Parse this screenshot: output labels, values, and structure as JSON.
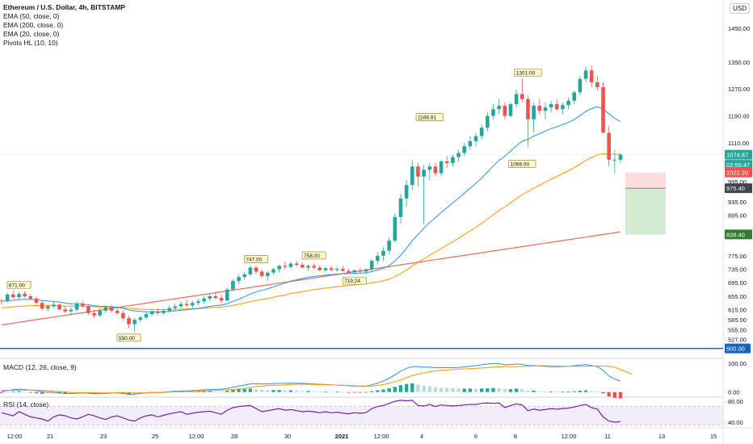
{
  "header": {
    "title": "Ethereum / U.S. Dollar, 4h, BITSTAMP",
    "indicators": [
      "EMA (50, close, 0)",
      "EMA (200, close, 0)",
      "EMA (20, close, 0)",
      "Pivots HL (10, 10)"
    ],
    "currency": "USD"
  },
  "macd": {
    "label": "MACD (12, 26, close, 9)",
    "ticks": [
      "100.00",
      "0.00"
    ]
  },
  "rsi": {
    "label": "RSI (14, close)",
    "ticks": [
      "80.00",
      "40.00"
    ]
  },
  "colors": {
    "up": "#26a69a",
    "down": "#ef5350",
    "ema20": "#2196f3",
    "ema50": "#ff9800",
    "ema200": "#f06a56",
    "hline": "#1565c0",
    "rsi": "#7b1fa2",
    "macd": "#2196f3",
    "signal": "#ff9800"
  },
  "chart_data": [
    {
      "type": "candlestick",
      "title": "Ethereum / U.S. Dollar, 4h, BITSTAMP",
      "y_ticks": [
        1450,
        1350,
        1270,
        1190,
        1110,
        995,
        935,
        895,
        775,
        735,
        695,
        655,
        615,
        585,
        555,
        527
      ],
      "ylim": [
        480,
        1510
      ],
      "x_ticks": [
        "12:00",
        "21",
        "23",
        "25",
        "12:00",
        "28",
        "30",
        "2021",
        "12:00",
        "4",
        "6",
        "8",
        "12:00",
        "11",
        "13",
        "15"
      ],
      "candles_ohlc": [
        [
          642,
          648,
          630,
          640
        ],
        [
          640,
          665,
          636,
          660
        ],
        [
          660,
          671,
          648,
          652
        ],
        [
          652,
          668,
          646,
          662
        ],
        [
          662,
          670,
          650,
          655
        ],
        [
          655,
          662,
          642,
          648
        ],
        [
          648,
          655,
          630,
          635
        ],
        [
          635,
          642,
          612,
          618
        ],
        [
          618,
          632,
          610,
          625
        ],
        [
          625,
          638,
          620,
          630
        ],
        [
          630,
          634,
          612,
          616
        ],
        [
          616,
          625,
          605,
          610
        ],
        [
          610,
          622,
          598,
          615
        ],
        [
          615,
          640,
          610,
          633
        ],
        [
          633,
          642,
          620,
          625
        ],
        [
          625,
          630,
          600,
          605
        ],
        [
          605,
          615,
          590,
          598
        ],
        [
          598,
          620,
          592,
          612
        ],
        [
          612,
          628,
          605,
          622
        ],
        [
          622,
          630,
          608,
          612
        ],
        [
          612,
          620,
          600,
          605
        ],
        [
          605,
          612,
          584,
          590
        ],
        [
          590,
          598,
          560,
          572
        ],
        [
          572,
          590,
          550,
          585
        ],
        [
          585,
          598,
          578,
          592
        ],
        [
          592,
          608,
          586,
          602
        ],
        [
          602,
          615,
          595,
          610
        ],
        [
          610,
          620,
          598,
          605
        ],
        [
          605,
          618,
          600,
          612
        ],
        [
          612,
          628,
          606,
          620
        ],
        [
          620,
          632,
          612,
          625
        ],
        [
          625,
          640,
          618,
          632
        ],
        [
          632,
          645,
          622,
          628
        ],
        [
          628,
          642,
          620,
          635
        ],
        [
          635,
          648,
          628,
          640
        ],
        [
          640,
          655,
          632,
          648
        ],
        [
          648,
          662,
          640,
          655
        ],
        [
          655,
          668,
          645,
          650
        ],
        [
          650,
          660,
          635,
          642
        ],
        [
          642,
          680,
          640,
          675
        ],
        [
          675,
          705,
          670,
          700
        ],
        [
          700,
          720,
          690,
          712
        ],
        [
          712,
          728,
          705,
          720
        ],
        [
          720,
          747,
          715,
          740
        ],
        [
          740,
          745,
          720,
          728
        ],
        [
          728,
          735,
          710,
          715
        ],
        [
          715,
          730,
          700,
          725
        ],
        [
          725,
          740,
          718,
          735
        ],
        [
          735,
          750,
          725,
          745
        ],
        [
          745,
          758,
          735,
          742
        ],
        [
          742,
          758,
          736,
          752
        ],
        [
          752,
          760,
          742,
          748
        ],
        [
          748,
          755,
          738,
          740
        ],
        [
          740,
          750,
          730,
          745
        ],
        [
          745,
          752,
          735,
          740
        ],
        [
          740,
          748,
          728,
          732
        ],
        [
          732,
          742,
          725,
          738
        ],
        [
          738,
          745,
          728,
          733
        ],
        [
          733,
          742,
          726,
          736
        ],
        [
          736,
          745,
          728,
          730
        ],
        [
          730,
          738,
          722,
          726
        ],
        [
          726,
          735,
          720,
          732
        ],
        [
          732,
          740,
          724,
          728
        ],
        [
          728,
          738,
          719,
          735
        ],
        [
          735,
          765,
          730,
          760
        ],
        [
          760,
          785,
          750,
          775
        ],
        [
          775,
          800,
          760,
          790
        ],
        [
          790,
          830,
          780,
          820
        ],
        [
          820,
          900,
          815,
          890
        ],
        [
          890,
          960,
          870,
          945
        ],
        [
          945,
          1000,
          920,
          985
        ],
        [
          985,
          1060,
          970,
          1040
        ],
        [
          1040,
          1050,
          980,
          1010
        ],
        [
          1010,
          1045,
          870,
          1030
        ],
        [
          1030,
          1050,
          1000,
          1040
        ],
        [
          1040,
          1050,
          1010,
          1020
        ],
        [
          1020,
          1060,
          1010,
          1055
        ],
        [
          1055,
          1070,
          1035,
          1050
        ],
        [
          1050,
          1075,
          1040,
          1068
        ],
        [
          1068,
          1090,
          1055,
          1080
        ],
        [
          1080,
          1110,
          1070,
          1100
        ],
        [
          1100,
          1130,
          1090,
          1115
        ],
        [
          1115,
          1140,
          1100,
          1130
        ],
        [
          1130,
          1165,
          1120,
          1155
        ],
        [
          1155,
          1200,
          1145,
          1190
        ],
        [
          1190,
          1225,
          1180,
          1210
        ],
        [
          1210,
          1240,
          1195,
          1220
        ],
        [
          1220,
          1230,
          1180,
          1190
        ],
        [
          1190,
          1230,
          1185,
          1225
        ],
        [
          1225,
          1268,
          1215,
          1255
        ],
        [
          1255,
          1301,
          1230,
          1240
        ],
        [
          1240,
          1250,
          1100,
          1180
        ],
        [
          1180,
          1230,
          1140,
          1220
        ],
        [
          1220,
          1240,
          1195,
          1205
        ],
        [
          1205,
          1230,
          1180,
          1215
        ],
        [
          1215,
          1235,
          1200,
          1225
        ],
        [
          1225,
          1240,
          1205,
          1210
        ],
        [
          1210,
          1230,
          1195,
          1222
        ],
        [
          1222,
          1245,
          1210,
          1235
        ],
        [
          1235,
          1265,
          1225,
          1260
        ],
        [
          1260,
          1310,
          1250,
          1300
        ],
        [
          1300,
          1335,
          1290,
          1325
        ],
        [
          1325,
          1340,
          1275,
          1290
        ],
        [
          1290,
          1310,
          1265,
          1275
        ],
        [
          1275,
          1290,
          1225,
          1140
        ],
        [
          1140,
          1160,
          1040,
          1060
        ],
        [
          1060,
          1090,
          1020,
          1060
        ],
        [
          1060,
          1080,
          1050,
          1075
        ]
      ],
      "pivot_labels": [
        {
          "text": "671.00",
          "value": 671
        },
        {
          "text": "550.00",
          "value": 550
        },
        {
          "text": "747.00",
          "value": 747
        },
        {
          "text": "758.00",
          "value": 758
        },
        {
          "text": "719.24",
          "value": 719.24
        },
        {
          "text": "1168.81",
          "value": 1168.81
        },
        {
          "text": "1301.00",
          "value": 1301
        },
        {
          "text": "1066.00",
          "value": 1066
        }
      ],
      "horizontal_line": {
        "value": 500,
        "label": "500.00"
      },
      "position_tool": {
        "entry": 975.4,
        "stop": 1022.2,
        "target": 838.4
      },
      "price_labels": [
        {
          "text": "1074.87",
          "value": 1074.87,
          "color": "#26a69a"
        },
        {
          "text": "02:55:47",
          "value": 1045,
          "color": "#26a69a"
        },
        {
          "text": "1022.20",
          "value": 1022.2,
          "color": "#ef5350"
        },
        {
          "text": "975.40",
          "value": 975.4,
          "color": "#434651"
        },
        {
          "text": "838.40",
          "value": 838.4,
          "color": "#2e7d32"
        }
      ]
    },
    {
      "type": "macd",
      "title": "MACD (12, 26, close, 9)",
      "ylim": [
        -12,
        105
      ],
      "y_ticks": [
        100,
        0
      ],
      "histogram": [
        -3,
        -1,
        2,
        3,
        1,
        -2,
        -4,
        -6,
        -5,
        -4,
        -5,
        -6,
        -4,
        -2,
        -1,
        -3,
        -5,
        -4,
        -2,
        -1,
        -2,
        -4,
        -7,
        -6,
        -4,
        -2,
        0,
        -1,
        0,
        1,
        2,
        3,
        2,
        2,
        3,
        4,
        4,
        3,
        2,
        5,
        8,
        10,
        11,
        12,
        10,
        8,
        7,
        7,
        7,
        6,
        6,
        5,
        4,
        4,
        3,
        2,
        2,
        1,
        1,
        0,
        -1,
        -1,
        -1,
        0,
        3,
        6,
        9,
        13,
        18,
        24,
        28,
        30,
        26,
        22,
        20,
        17,
        15,
        14,
        13,
        12,
        12,
        12,
        11,
        12,
        13,
        14,
        13,
        10,
        10,
        12,
        10,
        5,
        5,
        3,
        2,
        2,
        1,
        1,
        2,
        3,
        5,
        6,
        4,
        2,
        -4,
        -15,
        -20,
        -22
      ],
      "macd_line": [
        3,
        5,
        8,
        10,
        9,
        7,
        5,
        2,
        0,
        -1,
        -3,
        -5,
        -5,
        -4,
        -3,
        -4,
        -6,
        -6,
        -5,
        -3,
        -3,
        -5,
        -8,
        -7,
        -5,
        -3,
        -1,
        -1,
        0,
        1,
        3,
        4,
        4,
        5,
        6,
        8,
        9,
        10,
        10,
        13,
        17,
        21,
        24,
        28,
        29,
        28,
        28,
        29,
        30,
        31,
        31,
        31,
        30,
        29,
        28,
        27,
        26,
        25,
        24,
        23,
        22,
        21,
        20,
        21,
        25,
        31,
        38,
        48,
        60,
        72,
        82,
        88,
        88,
        86,
        86,
        84,
        84,
        84,
        84,
        85,
        87,
        89,
        91,
        94,
        97,
        99,
        98,
        94,
        95,
        97,
        96,
        91,
        92,
        90,
        89,
        88,
        88,
        88,
        89,
        91,
        93,
        95,
        92,
        88,
        75,
        55,
        45,
        38
      ],
      "signal_line": [
        6,
        6,
        6,
        7,
        7,
        7,
        7,
        6,
        5,
        3,
        2,
        1,
        -1,
        -2,
        -2,
        -2,
        -2,
        -3,
        -3,
        -3,
        -2,
        -2,
        -2,
        -3,
        -3,
        -3,
        -2,
        -2,
        -1,
        0,
        1,
        1,
        2,
        2,
        3,
        4,
        5,
        6,
        7,
        8,
        9,
        11,
        13,
        16,
        19,
        21,
        22,
        23,
        24,
        25,
        26,
        27,
        27,
        27,
        26,
        26,
        25,
        25,
        24,
        23,
        23,
        22,
        21,
        21,
        21,
        23,
        26,
        30,
        36,
        42,
        50,
        57,
        62,
        66,
        70,
        73,
        75,
        76,
        78,
        79,
        80,
        81,
        82,
        83,
        84,
        86,
        87,
        88,
        88,
        88,
        89,
        89,
        90,
        91,
        91,
        90,
        90,
        89,
        89,
        89,
        89,
        89,
        90,
        90,
        90,
        89,
        86,
        78,
        70,
        62
      ]
    },
    {
      "type": "line",
      "title": "RSI (14, close)",
      "ylim": [
        32,
        88
      ],
      "y_ticks": [
        80,
        40
      ],
      "band": [
        30,
        70
      ],
      "values": [
        58,
        55,
        52,
        60,
        55,
        50,
        48,
        46,
        42,
        50,
        54,
        52,
        48,
        46,
        50,
        55,
        52,
        48,
        45,
        50,
        52,
        48,
        44,
        42,
        48,
        52,
        54,
        50,
        53,
        56,
        58,
        60,
        55,
        57,
        59,
        60,
        61,
        58,
        55,
        63,
        68,
        70,
        71,
        72,
        66,
        60,
        62,
        64,
        66,
        63,
        64,
        62,
        60,
        61,
        60,
        58,
        60,
        58,
        59,
        57,
        56,
        58,
        57,
        58,
        66,
        70,
        72,
        76,
        80,
        82,
        81,
        82,
        72,
        71,
        74,
        70,
        73,
        72,
        71,
        72,
        73,
        74,
        74,
        76,
        77,
        76,
        77,
        68,
        72,
        75,
        73,
        62,
        65,
        63,
        64,
        66,
        65,
        66,
        67,
        69,
        72,
        74,
        68,
        65,
        50,
        42,
        40,
        41
      ]
    }
  ]
}
